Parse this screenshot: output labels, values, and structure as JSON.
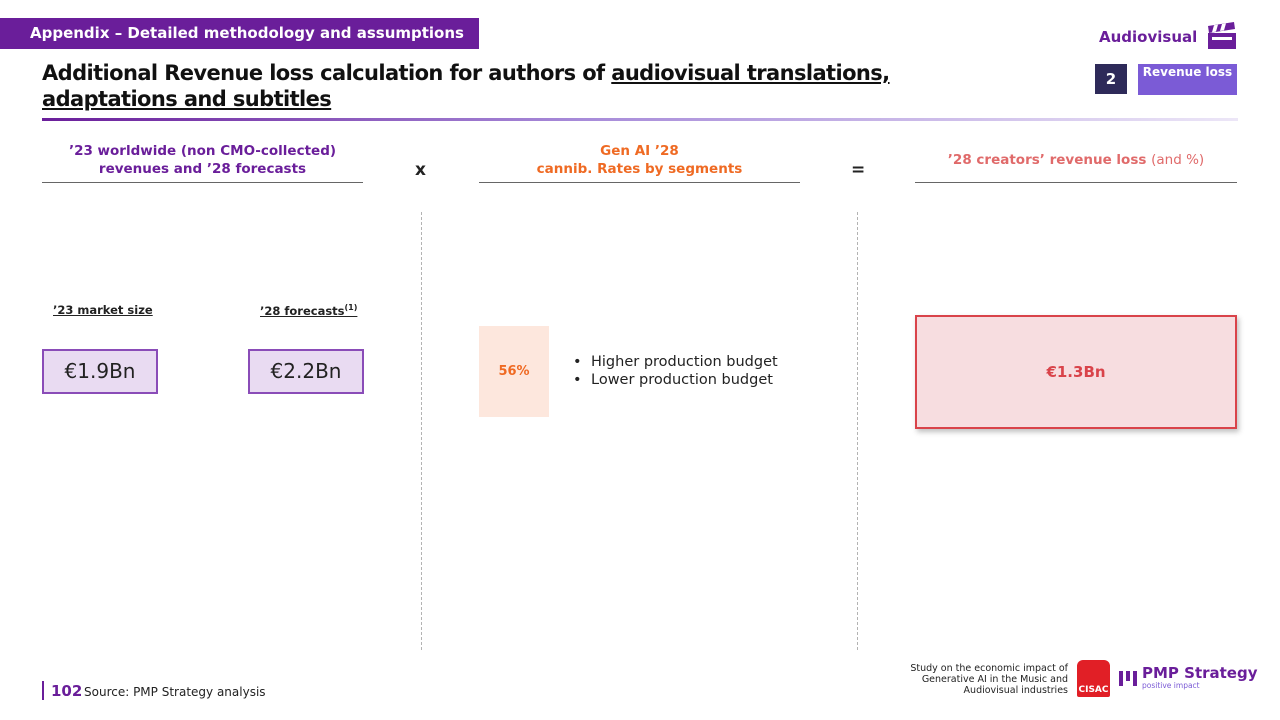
{
  "header": {
    "banner": "Appendix – Detailed methodology and assumptions",
    "section_tag": "Audiovisual",
    "title_plain": "Additional Revenue loss calculation for authors of ",
    "title_underlined": "audiovisual translations, adaptations and subtitles",
    "step_number": "2",
    "step_label": "Revenue loss"
  },
  "columns": {
    "revenues": {
      "heading": "’23 worldwide (non CMO-collected) revenues and ’28 forecasts",
      "market_size_label": "’23 market size",
      "forecast_label": "’28 forecasts",
      "forecast_note": "(1)",
      "market_size_value": "€1.9Bn",
      "forecast_value": "€2.2Bn"
    },
    "multiply_operator": "x",
    "cannibalization": {
      "heading_line1": "Gen AI ’28",
      "heading_line2": "cannib. Rates by segments",
      "rate": "56%",
      "segments": [
        "Higher production budget",
        "Lower production budget"
      ]
    },
    "equals_operator": "=",
    "result": {
      "heading": "’28 creators’ revenue loss",
      "heading_suffix": "(and %)",
      "value": "€1.3Bn"
    }
  },
  "footer": {
    "page_number": "102",
    "source": "Source:  PMP Strategy analysis",
    "study_note": "Study on the economic impact of Generative AI in the Music and Audiovisual industries",
    "cisac_logo_text": "CISAC",
    "pmp_name": "PMP Strategy",
    "pmp_tagline": "positive impact"
  },
  "colors": {
    "purple": "#6a1e9a",
    "orange": "#ef6a23",
    "red": "#d9434a",
    "navy": "#2e2a59",
    "violet": "#7b5bd6"
  }
}
